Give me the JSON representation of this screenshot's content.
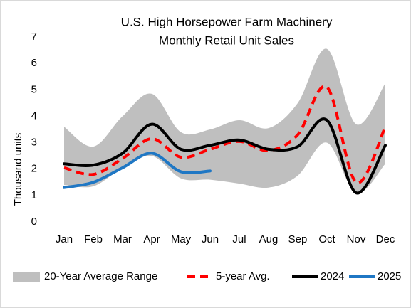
{
  "chart_data": {
    "type": "line",
    "title": [
      "U.S. High Horsepower Farm Machinery",
      "Monthly Retail Unit Sales"
    ],
    "y_label": "Thousand units",
    "categories": [
      "Jan",
      "Feb",
      "Mar",
      "Apr",
      "May",
      "Jun",
      "Jul",
      "Aug",
      "Sep",
      "Oct",
      "Nov",
      "Dec"
    ],
    "ylim": [
      0,
      7
    ],
    "yticks": [
      0,
      1,
      2,
      3,
      4,
      5,
      6,
      7
    ],
    "grid": false,
    "legend": "bottom",
    "series": [
      {
        "name": "20-Year Average Range",
        "type": "band",
        "color": "#bfbfbf",
        "upper": [
          3.6,
          2.85,
          4.0,
          4.85,
          3.4,
          3.5,
          3.85,
          3.55,
          4.5,
          6.55,
          3.7,
          5.25
        ],
        "lower": [
          1.4,
          1.35,
          2.05,
          2.5,
          1.65,
          1.6,
          1.45,
          1.3,
          1.75,
          3.0,
          1.1,
          2.2
        ]
      },
      {
        "name": "5-year Avg.",
        "type": "line",
        "dashed": true,
        "color": "#ff0000",
        "values": [
          2.05,
          1.8,
          2.4,
          3.15,
          2.45,
          2.75,
          3.05,
          2.7,
          3.3,
          5.1,
          1.5,
          3.6
        ]
      },
      {
        "name": "2024",
        "type": "line",
        "color": "#000000",
        "values": [
          2.2,
          2.15,
          2.6,
          3.7,
          2.75,
          2.9,
          3.1,
          2.75,
          2.85,
          3.85,
          1.1,
          2.9
        ]
      },
      {
        "name": "2025",
        "type": "line",
        "color": "#1f77c4",
        "values": [
          1.3,
          1.5,
          2.05,
          2.6,
          1.9,
          1.93,
          null,
          null,
          null,
          null,
          null,
          null
        ]
      }
    ]
  }
}
